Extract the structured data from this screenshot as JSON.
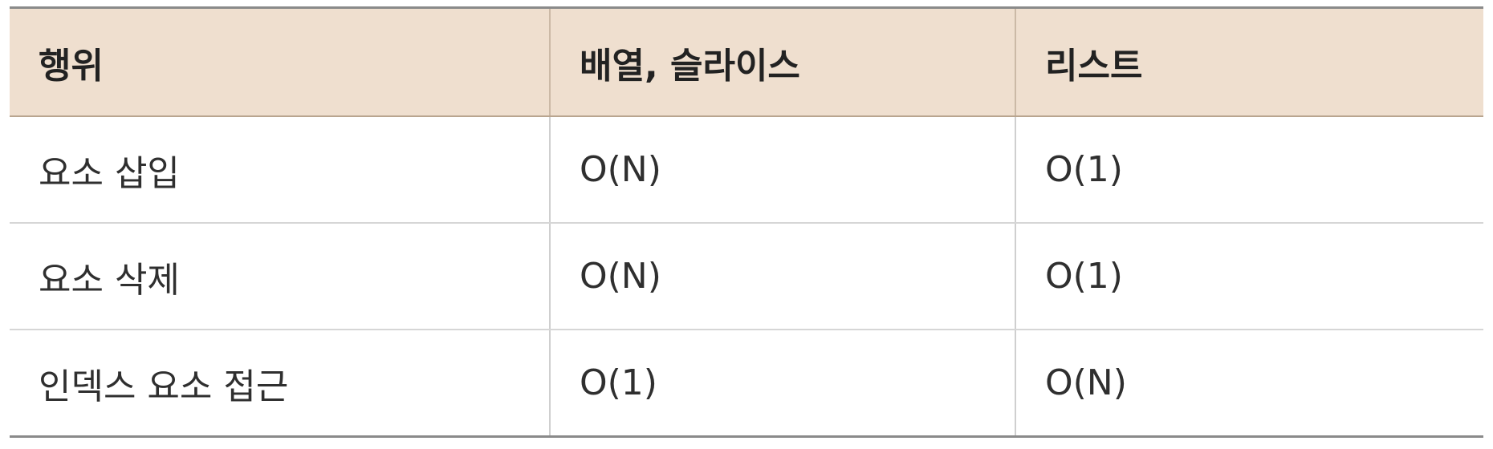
{
  "table": {
    "headers": [
      "행위",
      "배열, 슬라이스",
      "리스트"
    ],
    "rows": [
      [
        "요소 삽입",
        "O(N)",
        "O(1)"
      ],
      [
        "요소 삭제",
        "O(N)",
        "O(1)"
      ],
      [
        "인덱스 요소 접근",
        "O(1)",
        "O(N)"
      ]
    ]
  },
  "colors": {
    "header_background": "#efdfcf",
    "rule_dark": "#8a8a8a",
    "grid_light": "#d6d6d6"
  }
}
